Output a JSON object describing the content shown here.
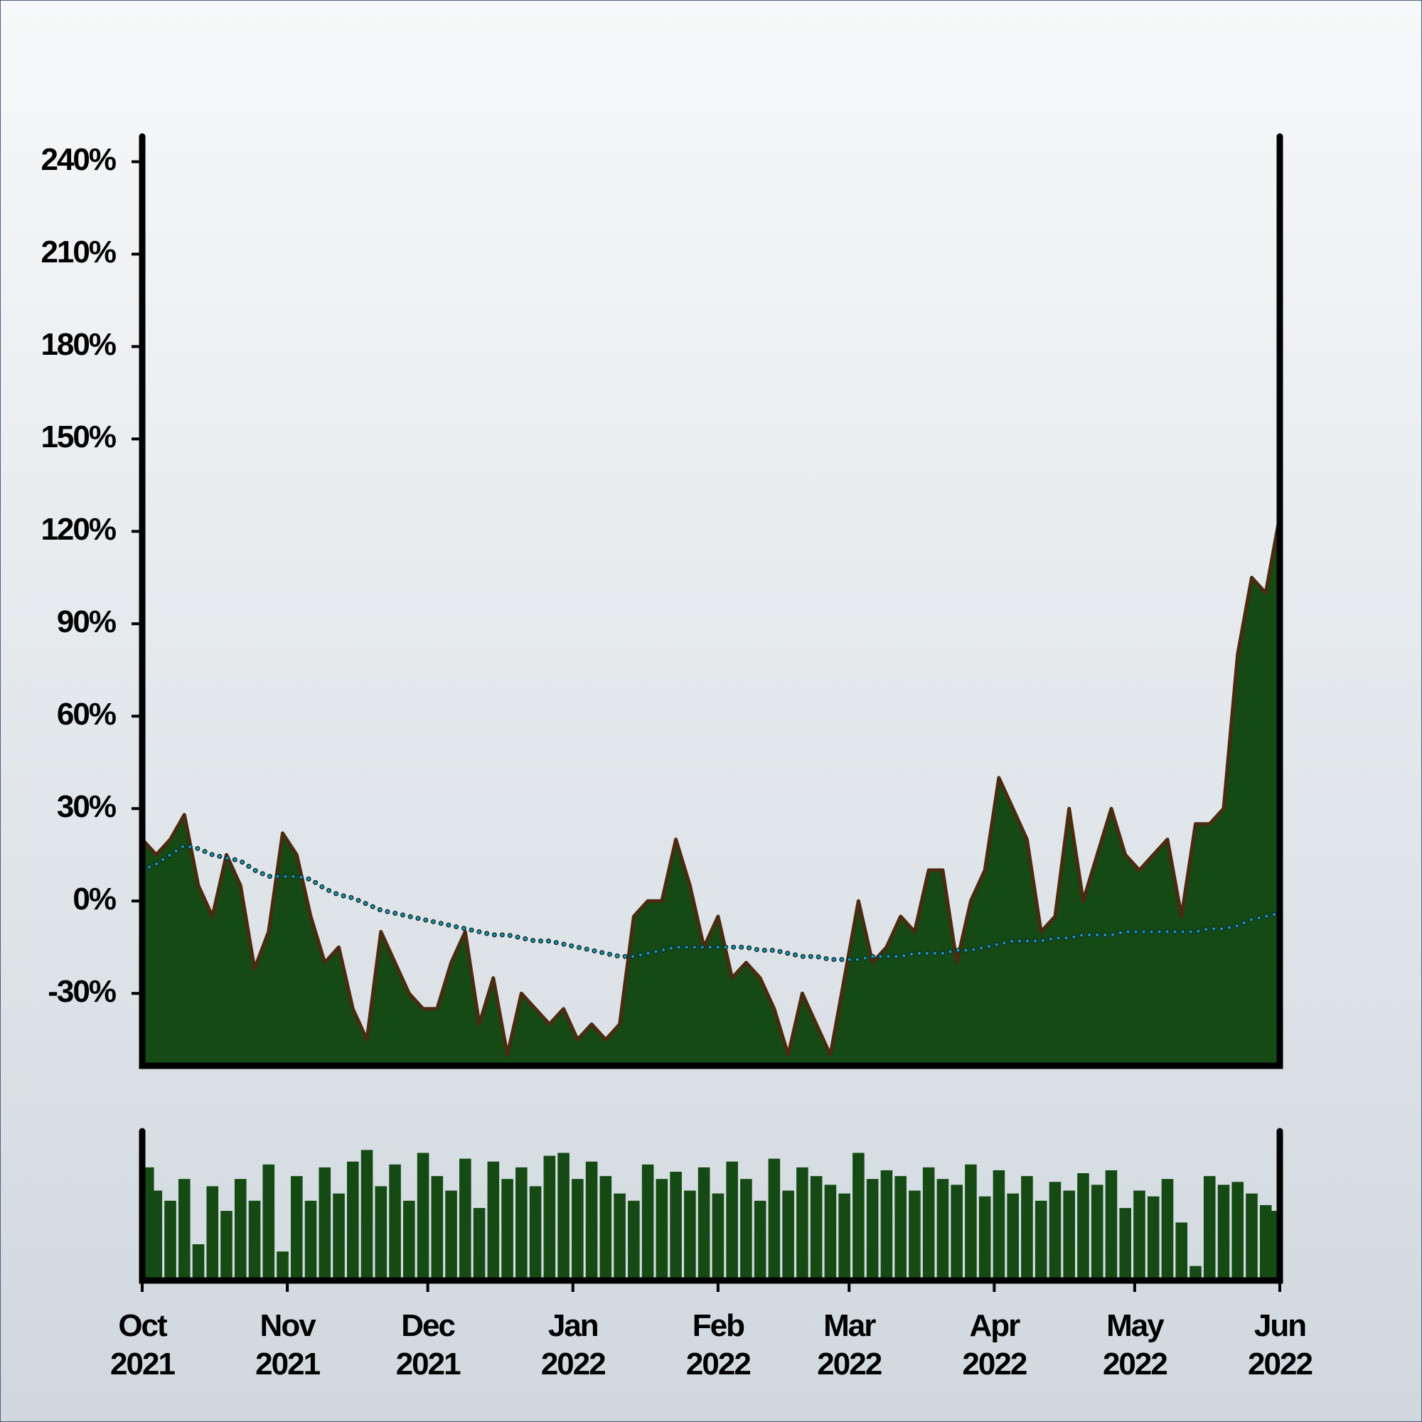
{
  "chart_data": [
    {
      "type": "area",
      "x": [
        0,
        3,
        6,
        9,
        12,
        15,
        18,
        21,
        24,
        27,
        30,
        33,
        36,
        39,
        42,
        45,
        48,
        51,
        54,
        57,
        60,
        63,
        66,
        69,
        72,
        75,
        78,
        81,
        84,
        87,
        90,
        93,
        96,
        99,
        102,
        105,
        108,
        111,
        114,
        117,
        120,
        123,
        126,
        129,
        132,
        135,
        138,
        141,
        144,
        147,
        150,
        153,
        156,
        159,
        162,
        165,
        168,
        171,
        174,
        177,
        180,
        183,
        186,
        189,
        192,
        195,
        198,
        201,
        204,
        207,
        210,
        213,
        216,
        219,
        222,
        225,
        228,
        231,
        234,
        237,
        240,
        243
      ],
      "xlim": [
        0,
        243
      ],
      "ylim": [
        -53.5,
        246.8
      ],
      "yticks": [
        {
          "value": -30,
          "label": "-30%"
        },
        {
          "value": 0,
          "label": "0%"
        },
        {
          "value": 30,
          "label": "30%"
        },
        {
          "value": 60,
          "label": "60%"
        },
        {
          "value": 90,
          "label": "90%"
        },
        {
          "value": 120,
          "label": "120%"
        },
        {
          "value": 150,
          "label": "150%"
        },
        {
          "value": 180,
          "label": "180%"
        },
        {
          "value": 210,
          "label": "210%"
        },
        {
          "value": 240,
          "label": "240%"
        }
      ],
      "series": [
        {
          "kind": "area",
          "color": "#154a14",
          "line_color": "#4a2a10",
          "values": [
            20,
            15,
            20,
            28,
            5,
            -5,
            15,
            5,
            -22,
            -10,
            22,
            15,
            -5,
            -20,
            -15,
            -35,
            -45,
            -10,
            -20,
            -30,
            -35,
            -35,
            -20,
            -10,
            -40,
            -25,
            -50,
            -30,
            -35,
            -40,
            -35,
            -45,
            -40,
            -45,
            -40,
            -5,
            0,
            0,
            20,
            5,
            -15,
            -5,
            -25,
            -20,
            -25,
            -35,
            -50,
            -30,
            -40,
            -50,
            -25,
            0,
            -20,
            -15,
            -5,
            -10,
            10,
            10,
            -20,
            0,
            10,
            40,
            30,
            20,
            -10,
            -5,
            30,
            0,
            15,
            30,
            15,
            10,
            15,
            20,
            -5,
            25,
            25,
            30,
            80,
            105,
            100,
            125
          ]
        },
        {
          "kind": "line",
          "color": "#1a9ab0",
          "values": [
            10,
            12,
            15,
            18,
            17,
            15,
            14,
            13,
            10,
            8,
            8,
            8,
            7,
            4,
            2,
            1,
            -1,
            -3,
            -4,
            -5,
            -6,
            -7,
            -8,
            -9,
            -10,
            -11,
            -11,
            -12,
            -13,
            -13,
            -14,
            -15,
            -16,
            -17,
            -18,
            -18,
            -17,
            -16,
            -15,
            -15,
            -15,
            -15,
            -15,
            -15,
            -16,
            -16,
            -17,
            -18,
            -18,
            -19,
            -19,
            -19,
            -18,
            -18,
            -18,
            -17,
            -17,
            -17,
            -16,
            -16,
            -15,
            -14,
            -13,
            -13,
            -13,
            -12,
            -12,
            -11,
            -11,
            -11,
            -10,
            -10,
            -10,
            -10,
            -10,
            -10,
            -9,
            -9,
            -8,
            -6,
            -5,
            -4
          ]
        }
      ]
    },
    {
      "type": "bar",
      "x": [
        0,
        3,
        6,
        9,
        12,
        15,
        18,
        21,
        24,
        27,
        30,
        33,
        36,
        39,
        42,
        45,
        48,
        51,
        54,
        57,
        60,
        63,
        66,
        69,
        72,
        75,
        78,
        81,
        84,
        87,
        90,
        93,
        96,
        99,
        102,
        105,
        108,
        111,
        114,
        117,
        120,
        123,
        126,
        129,
        132,
        135,
        138,
        141,
        144,
        147,
        150,
        153,
        156,
        159,
        162,
        165,
        168,
        171,
        174,
        177,
        180,
        183,
        186,
        189,
        192,
        195,
        198,
        201,
        204,
        207,
        210,
        213,
        216,
        219,
        222,
        225,
        228,
        231,
        234,
        237,
        240,
        243
      ],
      "xlim": [
        0,
        243
      ],
      "ylim": [
        0,
        100
      ],
      "color": "#154a14",
      "values": [
        78,
        62,
        55,
        70,
        25,
        65,
        48,
        70,
        55,
        80,
        20,
        72,
        55,
        78,
        60,
        82,
        90,
        65,
        80,
        55,
        88,
        72,
        62,
        84,
        50,
        82,
        70,
        78,
        65,
        86,
        88,
        70,
        82,
        72,
        60,
        55,
        80,
        70,
        75,
        62,
        78,
        60,
        82,
        70,
        55,
        84,
        62,
        78,
        72,
        66,
        60,
        88,
        70,
        76,
        72,
        62,
        78,
        70,
        66,
        80,
        58,
        76,
        60,
        72,
        55,
        68,
        62,
        74,
        66,
        76,
        50,
        62,
        58,
        70,
        40,
        10,
        72,
        66,
        68,
        60,
        52,
        48
      ],
      "xticks": [
        {
          "value": 0,
          "label": "Oct 2021"
        },
        {
          "value": 31,
          "label": "Nov 2021"
        },
        {
          "value": 61,
          "label": "Dec 2021"
        },
        {
          "value": 92,
          "label": "Jan 2022"
        },
        {
          "value": 123,
          "label": "Feb 2022"
        },
        {
          "value": 151,
          "label": "Mar 2022"
        },
        {
          "value": 182,
          "label": "Apr 2022"
        },
        {
          "value": 212,
          "label": "May 2022"
        },
        {
          "value": 243,
          "label": "Jun 2022"
        }
      ]
    }
  ]
}
